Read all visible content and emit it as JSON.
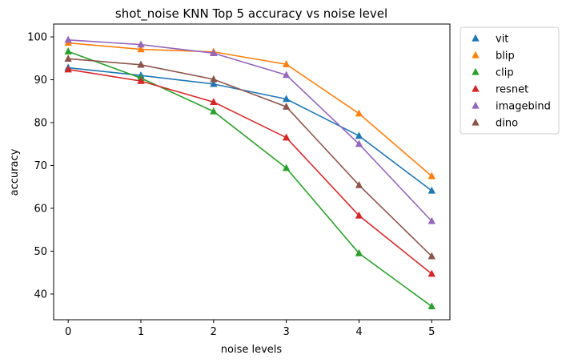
{
  "chart_data": {
    "type": "line",
    "title": "shot_noise KNN Top 5 accuracy vs noise level",
    "xlabel": "noise levels",
    "ylabel": "accuracy",
    "x": [
      0,
      1,
      2,
      3,
      4,
      5
    ],
    "xlim": [
      -0.2,
      5.25
    ],
    "ylim": [
      34,
      103
    ],
    "xticks": [
      "0",
      "1",
      "2",
      "3",
      "4",
      "5"
    ],
    "yticks": [
      40,
      50,
      60,
      70,
      80,
      90,
      100
    ],
    "grid": false,
    "legend_position": "outside-top-right",
    "marker": "triangle",
    "series": [
      {
        "name": "vit",
        "color": "#1f77b4",
        "values": [
          92.8,
          91.0,
          89.0,
          85.5,
          76.9,
          64.1
        ]
      },
      {
        "name": "blip",
        "color": "#ff7f0e",
        "values": [
          98.6,
          97.1,
          96.5,
          93.6,
          82.1,
          67.5
        ]
      },
      {
        "name": "clip",
        "color": "#2ca02c",
        "values": [
          96.6,
          90.4,
          82.6,
          69.4,
          49.5,
          37.1
        ]
      },
      {
        "name": "resnet",
        "color": "#d62728",
        "values": [
          92.4,
          89.7,
          84.8,
          76.5,
          58.3,
          44.7
        ]
      },
      {
        "name": "imagebind",
        "color": "#9467bd",
        "values": [
          99.3,
          98.2,
          96.2,
          91.1,
          75.0,
          57.0
        ]
      },
      {
        "name": "dino",
        "color": "#8c564b",
        "values": [
          94.9,
          93.5,
          90.1,
          83.7,
          65.4,
          48.8
        ]
      }
    ]
  }
}
